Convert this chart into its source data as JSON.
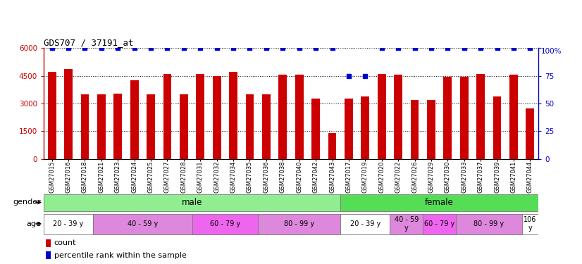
{
  "title": "GDS707 / 37191_at",
  "samples": [
    "GSM27015",
    "GSM27016",
    "GSM27018",
    "GSM27021",
    "GSM27023",
    "GSM27024",
    "GSM27025",
    "GSM27027",
    "GSM27028",
    "GSM27031",
    "GSM27032",
    "GSM27034",
    "GSM27035",
    "GSM27036",
    "GSM27038",
    "GSM27040",
    "GSM27042",
    "GSM27043",
    "GSM27017",
    "GSM27019",
    "GSM27020",
    "GSM27022",
    "GSM27026",
    "GSM27029",
    "GSM27030",
    "GSM27033",
    "GSM27037",
    "GSM27039",
    "GSM27041",
    "GSM27044"
  ],
  "counts": [
    4700,
    4850,
    3500,
    3500,
    3550,
    4250,
    3500,
    4600,
    3500,
    4600,
    4500,
    4700,
    3500,
    3500,
    4550,
    4550,
    3250,
    1400,
    3250,
    3400,
    4600,
    4550,
    3200,
    3200,
    4450,
    4450,
    4600,
    3400,
    4550,
    2750
  ],
  "percentile_ranks": [
    100,
    100,
    100,
    100,
    100,
    100,
    100,
    100,
    100,
    100,
    100,
    100,
    100,
    100,
    100,
    100,
    100,
    100,
    75,
    75,
    100,
    100,
    100,
    100,
    100,
    100,
    100,
    100,
    100,
    100
  ],
  "bar_color": "#cc0000",
  "dot_color": "#0000cc",
  "ylim_left": [
    0,
    6000
  ],
  "ylim_right": [
    0,
    100
  ],
  "yticks_left": [
    0,
    1500,
    3000,
    4500,
    6000
  ],
  "yticks_right": [
    0,
    25,
    50,
    75,
    100
  ],
  "gender_groups": [
    {
      "label": "male",
      "start": 0,
      "end": 18,
      "color": "#90EE90"
    },
    {
      "label": "female",
      "start": 18,
      "end": 30,
      "color": "#55DD55"
    }
  ],
  "age_groups": [
    {
      "label": "20 - 39 y",
      "start": 0,
      "end": 3,
      "color": "#FFFFFF"
    },
    {
      "label": "40 - 59 y",
      "start": 3,
      "end": 9,
      "color": "#DD88DD"
    },
    {
      "label": "60 - 79 y",
      "start": 9,
      "end": 13,
      "color": "#EE66EE"
    },
    {
      "label": "80 - 99 y",
      "start": 13,
      "end": 18,
      "color": "#DD88DD"
    },
    {
      "label": "20 - 39 y",
      "start": 18,
      "end": 21,
      "color": "#FFFFFF"
    },
    {
      "label": "40 - 59\ny",
      "start": 21,
      "end": 23,
      "color": "#DD88DD"
    },
    {
      "label": "60 - 79 y",
      "start": 23,
      "end": 25,
      "color": "#EE66EE"
    },
    {
      "label": "80 - 99 y",
      "start": 25,
      "end": 29,
      "color": "#DD88DD"
    },
    {
      "label": "106\ny",
      "start": 29,
      "end": 30,
      "color": "#FFFFFF"
    }
  ],
  "background_color": "#ffffff",
  "grid_color": "black",
  "grid_linestyle": "dotted",
  "bar_width": 0.5,
  "dot_size": 15,
  "title_fontsize": 9,
  "tick_fontsize": 7.5,
  "label_fontsize": 8,
  "xtick_fontsize": 6.0,
  "row_label_fontsize": 8
}
